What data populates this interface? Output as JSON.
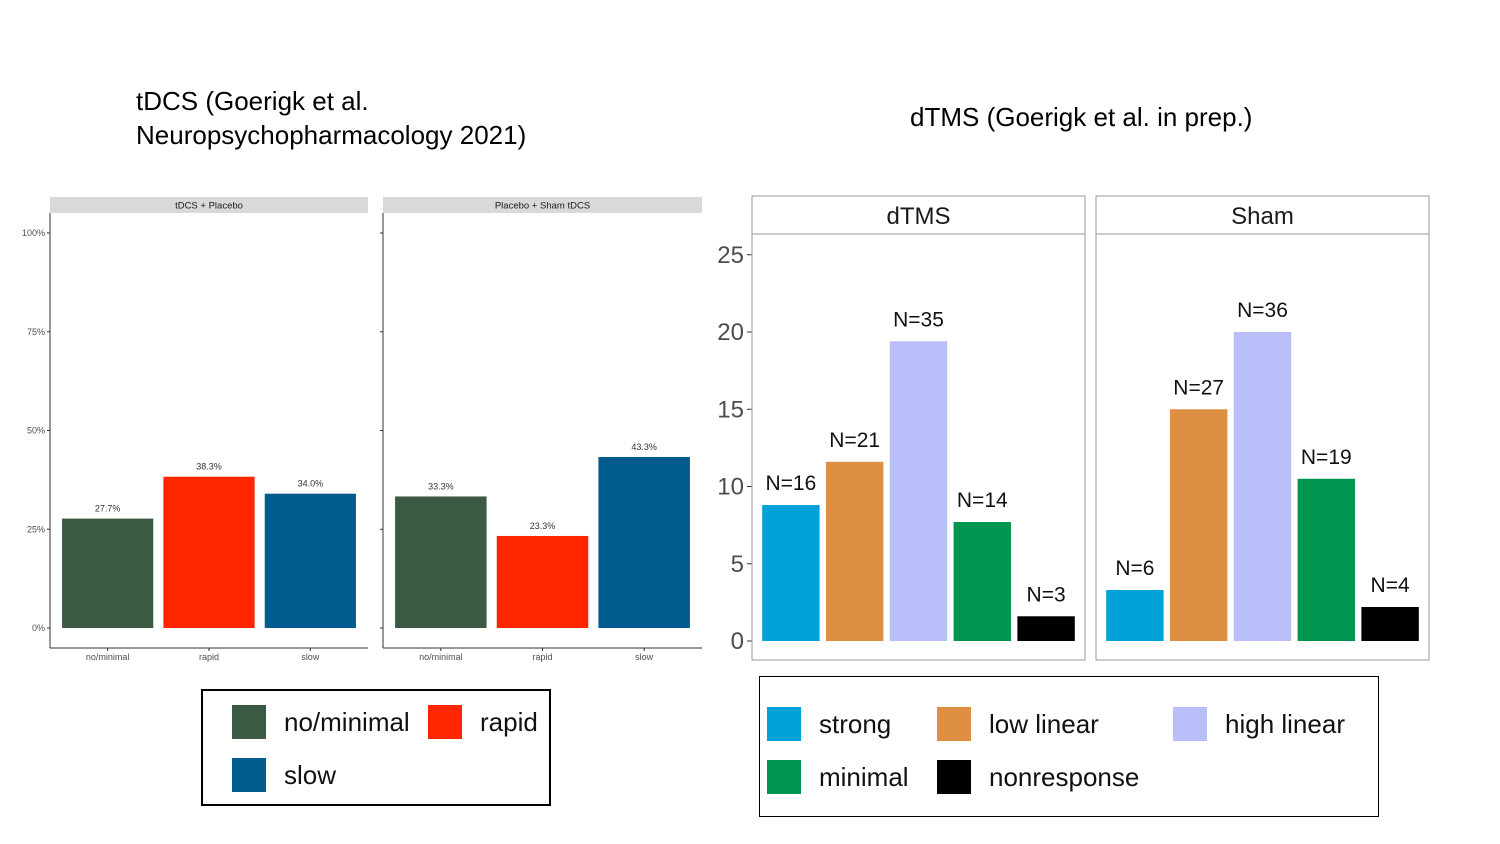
{
  "left_title": "tDCS (Goerigk et al. Neuropsychopharmacology 2021)",
  "right_title": "dTMS (Goerigk et al. in prep.)",
  "colors": {
    "no_minimal": "#3b5a43",
    "rapid": "#ff2600",
    "slow": "#005b8f",
    "strong": "#00a2d7",
    "low_linear": "#df8f43",
    "high_linear": "#b8bef8",
    "minimal": "#00964f",
    "nonresponse": "#000000"
  },
  "chart_data": [
    {
      "type": "bar",
      "ylim": [
        0,
        100
      ],
      "yticks": [
        "0%",
        "25%",
        "50%",
        "75%",
        "100%"
      ],
      "categories": [
        "no/minimal",
        "rapid",
        "slow"
      ],
      "panels": [
        {
          "name": "tDCS + Placebo",
          "values": [
            27.7,
            38.3,
            34.0
          ],
          "labels": [
            "27.7%",
            "38.3%",
            "34.0%"
          ]
        },
        {
          "name": "Placebo + Sham tDCS",
          "values": [
            33.3,
            23.3,
            43.3
          ],
          "labels": [
            "33.3%",
            "23.3%",
            "43.3%"
          ]
        }
      ],
      "legend": [
        "no/minimal",
        "rapid",
        "slow"
      ]
    },
    {
      "type": "bar",
      "ylim": [
        0,
        26
      ],
      "yticks": [
        "0",
        "5",
        "10",
        "15",
        "20",
        "25"
      ],
      "categories": [
        "strong",
        "low linear",
        "high linear",
        "minimal",
        "nonresponse"
      ],
      "panels": [
        {
          "name": "dTMS",
          "values": [
            8.8,
            11.6,
            19.4,
            7.7,
            1.6
          ],
          "labels": [
            "N=16",
            "N=21",
            "N=35",
            "N=14",
            "N=3"
          ]
        },
        {
          "name": "Sham",
          "values": [
            3.3,
            15.0,
            20.0,
            10.5,
            2.2
          ],
          "labels": [
            "N=6",
            "N=27",
            "N=36",
            "N=19",
            "N=4"
          ]
        }
      ],
      "legend": [
        "strong",
        "low linear",
        "high linear",
        "minimal",
        "nonresponse"
      ]
    }
  ]
}
